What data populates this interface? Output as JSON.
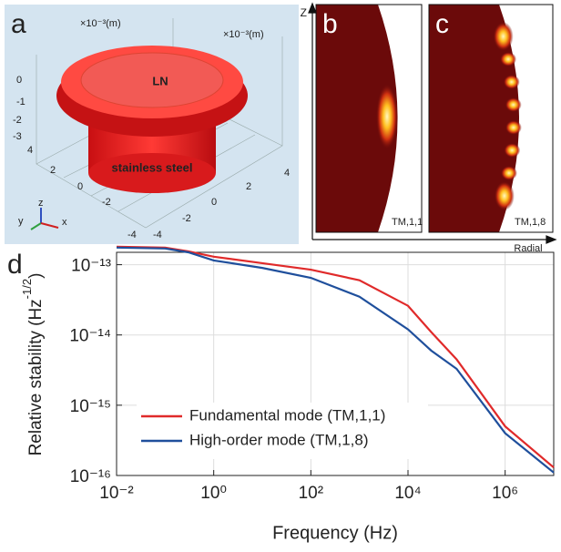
{
  "panels": {
    "a": {
      "letter": "a",
      "top": "LN",
      "body": "stainless steel",
      "unit1": "×10⁻³(m)",
      "unit2": "×10⁻³(m)",
      "z_ticks": [
        "0",
        "-1",
        "-2",
        "-3"
      ],
      "x_ticks": [
        "4",
        "2",
        "0",
        "-2",
        "-4"
      ],
      "y_ticks": [
        "4",
        "2",
        "0",
        "-2",
        "-4"
      ],
      "axes": [
        "z",
        "y",
        "x"
      ]
    },
    "b": {
      "letter": "b",
      "mode": "TM,1,1"
    },
    "c": {
      "letter": "c",
      "mode": "TM,1,8"
    },
    "axis_z": "Z",
    "axis_radial": "Radial"
  },
  "chart_data": {
    "type": "line",
    "letter": "d",
    "xlabel": "Frequency (Hz)",
    "ylabel": {
      "text": "Relative stability (Hz",
      "superscript": "-1/2",
      "close": ")"
    },
    "log_x": true,
    "log_y": true,
    "grid": true,
    "legend": "lower-left",
    "xlim": [
      0.01,
      10000000
    ],
    "ylim": [
      1e-16,
      1.5e-13
    ],
    "xticks": [
      {
        "value": 0.01,
        "label": "10⁻²"
      },
      {
        "value": 1,
        "label": "10⁰"
      },
      {
        "value": 100,
        "label": "10²"
      },
      {
        "value": 10000,
        "label": "10⁴"
      },
      {
        "value": 1000000,
        "label": "10⁶"
      }
    ],
    "yticks": [
      {
        "value": 1e-13,
        "label": "10⁻¹³"
      },
      {
        "value": 1e-14,
        "label": "10⁻¹⁴"
      },
      {
        "value": 1e-15,
        "label": "10⁻¹⁵"
      },
      {
        "value": 1e-16,
        "label": "10⁻¹⁶"
      }
    ],
    "x": [
      0.01,
      0.1,
      0.3,
      1,
      10,
      100,
      1000,
      10000,
      30000,
      100000,
      1000000,
      10000000
    ],
    "series": [
      {
        "name": "Fundamental mode (TM,1,1)",
        "color": "#e02a2a",
        "values": [
          1.8e-13,
          1.75e-13,
          1.55e-13,
          1.3e-13,
          1.05e-13,
          8.5e-14,
          6e-14,
          2.6e-14,
          1.1e-14,
          4.5e-15,
          5e-16,
          1.3e-16
        ]
      },
      {
        "name": "High-order mode (TM,1,8)",
        "color": "#1f4f9c",
        "values": [
          1.75e-13,
          1.7e-13,
          1.5e-13,
          1.15e-13,
          9e-14,
          6.5e-14,
          3.5e-14,
          1.2e-14,
          6e-15,
          3.3e-15,
          4e-16,
          1.1e-16
        ]
      }
    ]
  }
}
